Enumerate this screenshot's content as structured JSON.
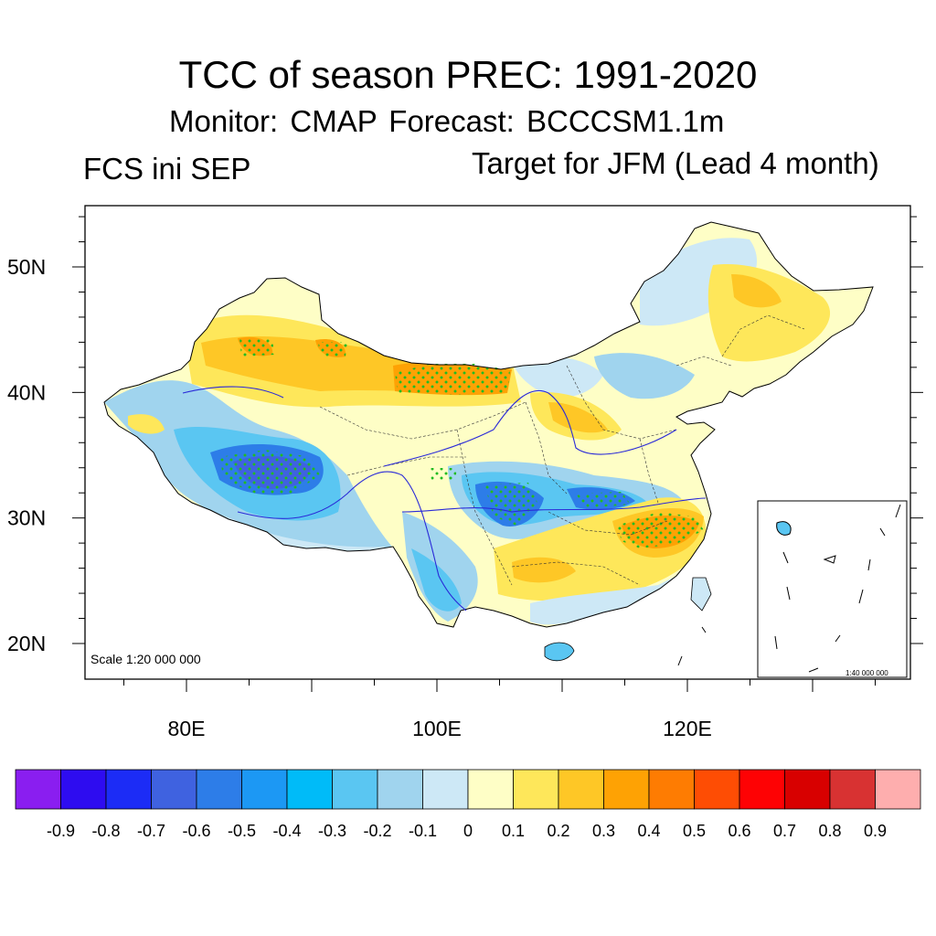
{
  "header": {
    "title": "TCC of season PREC: 1991-2020",
    "subtitle": "Monitor: CMAP   Forecast: BCCCSM1.1m",
    "left_string": "FCS ini SEP",
    "right_string": "Target for JFM (Lead 4 month)"
  },
  "map": {
    "projection": "lat-lon",
    "lon_range": [
      72,
      138
    ],
    "lat_range": [
      16,
      55
    ],
    "lat_ticks": [
      {
        "value": 50,
        "label": "50N"
      },
      {
        "value": 40,
        "label": "40N"
      },
      {
        "value": 30,
        "label": "30N"
      },
      {
        "value": 20,
        "label": "20N"
      }
    ],
    "lon_ticks": [
      {
        "value": 80,
        "label": "80E"
      },
      {
        "value": 100,
        "label": "100E"
      },
      {
        "value": 120,
        "label": "120E"
      }
    ],
    "scale_text": "Scale 1:20 000 000",
    "inset_scale_text": "1:40 000 000",
    "colors": {
      "boundary": "#000000",
      "rivers": "#2a2ad8",
      "stipple": "#22bb22"
    }
  },
  "colorbar": {
    "levels": [
      "-0.9",
      "-0.8",
      "-0.7",
      "-0.6",
      "-0.5",
      "-0.4",
      "-0.3",
      "-0.2",
      "-0.1",
      "0",
      "0.1",
      "0.2",
      "0.3",
      "0.4",
      "0.5",
      "0.6",
      "0.7",
      "0.8",
      "0.9"
    ],
    "colors": [
      "#8a1ef0",
      "#2e0cf0",
      "#1c2cf6",
      "#3f62e0",
      "#2d7de8",
      "#1c98f4",
      "#00bbf8",
      "#5ac6f2",
      "#a0d4ee",
      "#cde8f6",
      "#fefec6",
      "#fee75a",
      "#fec726",
      "#fea204",
      "#fe7c02",
      "#fe4d04",
      "#fe0204",
      "#d80000",
      "#d83232",
      "#feaeae"
    ]
  }
}
